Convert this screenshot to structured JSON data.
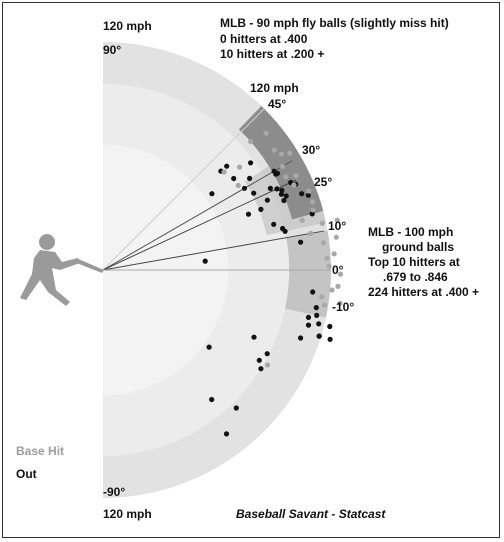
{
  "chart_data": {
    "type": "scatter",
    "title": "MLB - 90 mph fly balls (slightly miss hit)",
    "subtitle_lines": [
      "0 hitters at .400",
      "10 hitters at .200 +"
    ],
    "right_annotation_lines": [
      "MLB - 100 mph",
      "ground balls",
      "Top 10 hitters at",
      ".679 to .846",
      "224 hitters at .400 +"
    ],
    "source": "Baseball Savant - Statcast",
    "speed_labels": {
      "top": "120 mph",
      "top_angle": "120 mph",
      "bottom": "120 mph"
    },
    "angle_labels": [
      "90°",
      "45°",
      "30°",
      "25°",
      "10°",
      "0°",
      "-10°",
      "-90°"
    ],
    "legend": [
      {
        "label": "Base Hit",
        "color": "#a8a8a8"
      },
      {
        "label": "Out",
        "color": "#111111"
      }
    ],
    "colors": {
      "outer_band": "#e2e2e2",
      "inner_band": "#ececec",
      "center": "#f3f3f3",
      "sweet_spot": "#8c8c8c",
      "line_drive_zone": "#b9b9b9",
      "hit": "#a8a8a8",
      "out": "#111111",
      "batter": "#9a9a9a"
    },
    "axes": {
      "radial": "exit velocity (mph)",
      "angular": "launch angle (degrees)",
      "r_max": 120,
      "angle_range": [
        -90,
        90
      ]
    },
    "series": [
      {
        "name": "Out",
        "points": [
          {
            "angle": 35,
            "speed": 70
          },
          {
            "angle": 40,
            "speed": 81
          },
          {
            "angle": 35,
            "speed": 84
          },
          {
            "angle": 40,
            "speed": 85
          },
          {
            "angle": 30,
            "speed": 86
          },
          {
            "angle": 27,
            "speed": 89
          },
          {
            "angle": 36,
            "speed": 96
          },
          {
            "angle": 32,
            "speed": 91
          },
          {
            "angle": 21,
            "speed": 82
          },
          {
            "angle": 21,
            "speed": 89
          },
          {
            "angle": 23,
            "speed": 94
          },
          {
            "angle": 26,
            "speed": 98
          },
          {
            "angle": 24,
            "speed": 103
          },
          {
            "angle": 25,
            "speed": 101
          },
          {
            "angle": 21,
            "speed": 102
          },
          {
            "angle": 22,
            "speed": 104
          },
          {
            "angle": 23,
            "speed": 102
          },
          {
            "angle": 15,
            "speed": 93
          },
          {
            "angle": 13,
            "speed": 97
          },
          {
            "angle": 12,
            "speed": 98
          },
          {
            "angle": 25,
            "speed": 109
          },
          {
            "angle": 24,
            "speed": 111
          },
          {
            "angle": 21,
            "speed": 112
          },
          {
            "angle": 20,
            "speed": 115
          },
          {
            "angle": 15,
            "speed": 114
          },
          {
            "angle": 29,
            "speed": 104
          },
          {
            "angle": 30,
            "speed": 104
          },
          {
            "angle": 29,
            "speed": 105
          },
          {
            "angle": 8,
            "speed": 105
          },
          {
            "angle": 5,
            "speed": 54
          },
          {
            "angle": -6,
            "speed": 111
          },
          {
            "angle": -10,
            "speed": 114
          },
          {
            "angle": -12,
            "speed": 115
          },
          {
            "angle": -14,
            "speed": 117
          },
          {
            "angle": -15,
            "speed": 112
          },
          {
            "angle": -19,
            "speed": 110
          },
          {
            "angle": -13,
            "speed": 111
          },
          {
            "angle": -17,
            "speed": 119
          },
          {
            "angle": -14,
            "speed": 123
          },
          {
            "angle": -17,
            "speed": 125
          },
          {
            "angle": -17,
            "speed": 119
          },
          {
            "angle": -24,
            "speed": 87
          },
          {
            "angle": -27,
            "speed": 97
          },
          {
            "angle": -32,
            "speed": 98
          },
          {
            "angle": -36,
            "speed": 69
          },
          {
            "angle": -46,
            "speed": 101
          },
          {
            "angle": -53,
            "speed": 108
          },
          {
            "angle": -50,
            "speed": 89
          },
          {
            "angle": -30,
            "speed": 95
          }
        ]
      },
      {
        "name": "Base Hit",
        "points": [
          {
            "angle": 39,
            "speed": 82
          },
          {
            "angle": 37,
            "speed": 90
          },
          {
            "angle": 32,
            "speed": 84
          },
          {
            "angle": 41,
            "speed": 103
          },
          {
            "angle": 40,
            "speed": 112
          },
          {
            "angle": 35,
            "speed": 110
          },
          {
            "angle": 33,
            "speed": 112
          },
          {
            "angle": 32,
            "speed": 116
          },
          {
            "angle": 30,
            "speed": 109
          },
          {
            "angle": 27,
            "speed": 108
          },
          {
            "angle": 24,
            "speed": 110
          },
          {
            "angle": 26,
            "speed": 113
          },
          {
            "angle": 21,
            "speed": 116
          },
          {
            "angle": 18,
            "speed": 116
          },
          {
            "angle": 16,
            "speed": 115
          },
          {
            "angle": 12,
            "speed": 118
          },
          {
            "angle": 7,
            "speed": 117
          },
          {
            "angle": 8,
            "speed": 124
          },
          {
            "angle": 4,
            "speed": 122
          },
          {
            "angle": 3,
            "speed": 118
          },
          {
            "angle": 1,
            "speed": 119
          },
          {
            "angle": -1,
            "speed": 125
          },
          {
            "angle": -4,
            "speed": 124
          },
          {
            "angle": -5,
            "speed": 121
          },
          {
            "angle": -8,
            "speed": 126
          },
          {
            "angle": -9,
            "speed": 118
          },
          {
            "angle": -7,
            "speed": 116
          },
          {
            "angle": 14,
            "speed": 108
          },
          {
            "angle": 10,
            "speed": 111
          },
          {
            "angle": 12,
            "speed": 126
          },
          {
            "angle": -30,
            "speed": 100
          }
        ]
      }
    ]
  }
}
